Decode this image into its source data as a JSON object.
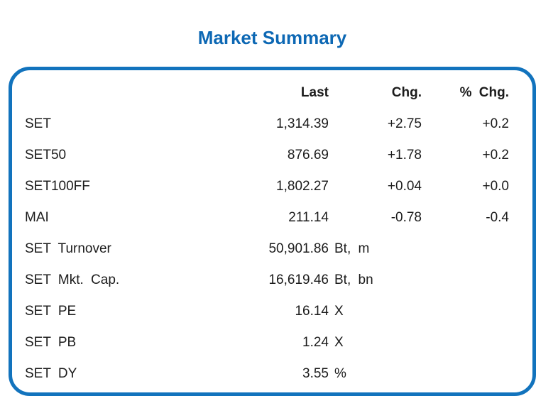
{
  "title": "Market Summary",
  "colors": {
    "accent_border": "#1273bd",
    "title_blue": "#0d68b4",
    "text": "#1c1c1c"
  },
  "table": {
    "headers": {
      "last": "Last",
      "chg": "Chg.",
      "pct_chg": "% Chg."
    },
    "rows": [
      {
        "label": "SET",
        "last": "1,314.39",
        "unit": "",
        "chg": "+2.75",
        "pct": "+0.2"
      },
      {
        "label": "SET50",
        "last": "876.69",
        "unit": "",
        "chg": "+1.78",
        "pct": "+0.2"
      },
      {
        "label": "SET100FF",
        "last": "1,802.27",
        "unit": "",
        "chg": "+0.04",
        "pct": "+0.0"
      },
      {
        "label": "MAI",
        "last": "211.14",
        "unit": "",
        "chg": "-0.78",
        "pct": "-0.4"
      },
      {
        "label": "SET Turnover",
        "last": "50,901.86",
        "unit": "Bt, m",
        "chg": "",
        "pct": ""
      },
      {
        "label": "SET Mkt. Cap.",
        "last": "16,619.46",
        "unit": "Bt, bn",
        "chg": "",
        "pct": ""
      },
      {
        "label": "SET PE",
        "last": "16.14",
        "unit": "X",
        "chg": "",
        "pct": ""
      },
      {
        "label": "SET PB",
        "last": "1.24",
        "unit": "X",
        "chg": "",
        "pct": ""
      },
      {
        "label": "SET DY",
        "last": "3.55",
        "unit": "%",
        "chg": "",
        "pct": ""
      }
    ]
  }
}
